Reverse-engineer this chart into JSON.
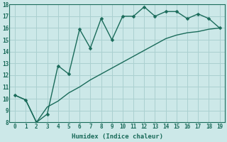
{
  "xlabel": "Humidex (Indice chaleur)",
  "ylabel": "",
  "background_color": "#cce8e8",
  "grid_color": "#aad0d0",
  "line_color": "#1a6b5a",
  "xlim": [
    -0.5,
    19.5
  ],
  "ylim": [
    8,
    18
  ],
  "xticks": [
    0,
    1,
    2,
    3,
    4,
    5,
    6,
    7,
    8,
    9,
    10,
    11,
    12,
    13,
    14,
    15,
    16,
    17,
    18,
    19
  ],
  "yticks": [
    8,
    9,
    10,
    11,
    12,
    13,
    14,
    15,
    16,
    17,
    18
  ],
  "line1_x": [
    0,
    1,
    2,
    3,
    4,
    5,
    6,
    7,
    8,
    9,
    10,
    11,
    12,
    13,
    14,
    15,
    16,
    17,
    18,
    19
  ],
  "line1_y": [
    10.3,
    9.9,
    8.0,
    8.7,
    12.8,
    12.1,
    15.9,
    14.3,
    16.8,
    15.0,
    17.0,
    17.0,
    17.8,
    17.0,
    17.4,
    17.4,
    16.8,
    17.2,
    16.8,
    16.0
  ],
  "line2_x": [
    0,
    1,
    2,
    3,
    4,
    5,
    6,
    7,
    8,
    9,
    10,
    11,
    12,
    13,
    14,
    15,
    16,
    17,
    18,
    19
  ],
  "line2_y": [
    10.3,
    9.9,
    8.0,
    9.3,
    9.8,
    10.5,
    11.0,
    11.6,
    12.1,
    12.6,
    13.1,
    13.6,
    14.1,
    14.6,
    15.1,
    15.4,
    15.6,
    15.7,
    15.9,
    16.0
  ],
  "marker": "D",
  "markersize": 2.5,
  "linewidth": 1.0,
  "tick_fontsize": 5.5,
  "xlabel_fontsize": 6.5
}
